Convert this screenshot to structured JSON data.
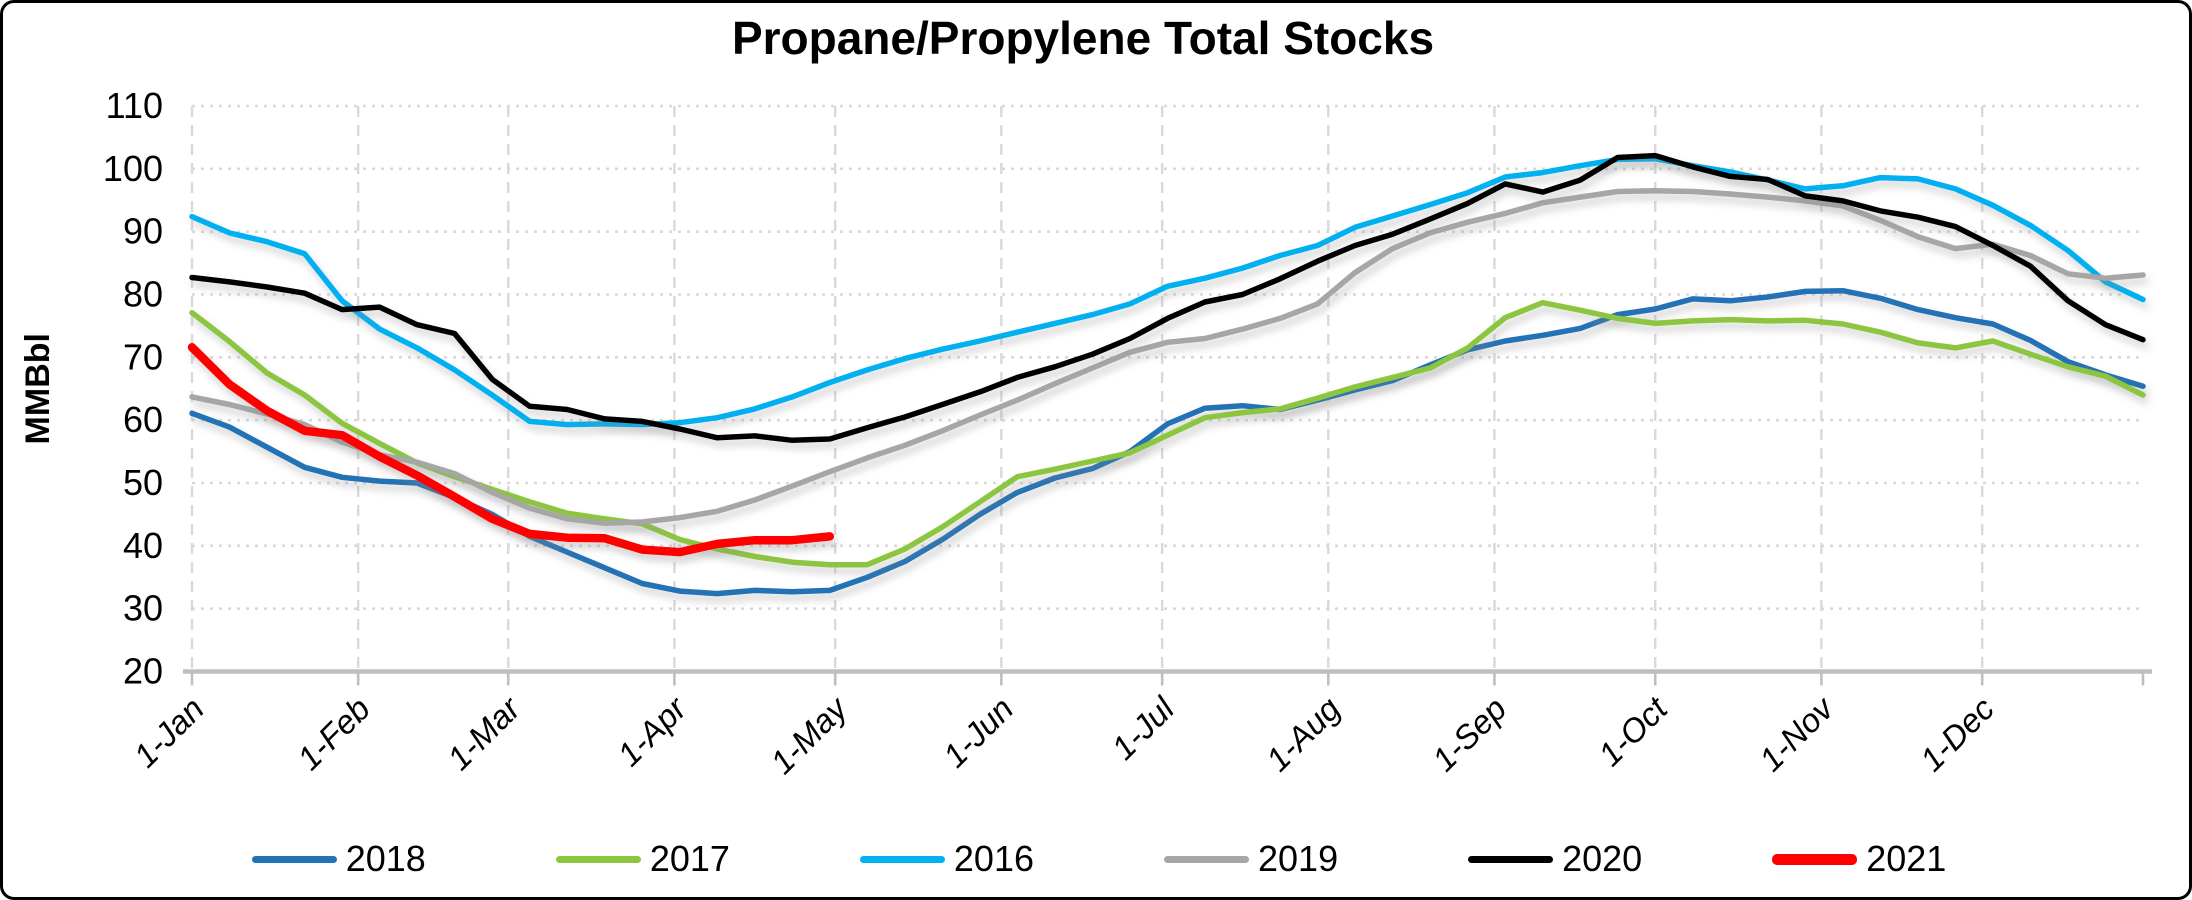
{
  "title": "Propane/Propylene Total Stocks",
  "y_axis": {
    "title": "MMBbl"
  },
  "chart_data": {
    "type": "line",
    "title": "Propane/Propylene Total Stocks",
    "xlabel": "",
    "ylabel": "MMBbl",
    "ylim": [
      20,
      110
    ],
    "y_ticks": [
      20,
      30,
      40,
      50,
      60,
      70,
      80,
      90,
      100,
      110
    ],
    "grid": "both",
    "legend_position": "bottom",
    "x_tick_labels": [
      "1-Jan",
      "1-Feb",
      "1-Mar",
      "1-Apr",
      "1-May",
      "1-Jun",
      "1-Jul",
      "1-Aug",
      "1-Sep",
      "1-Oct",
      "1-Nov",
      "1-Dec"
    ],
    "month_start_days": [
      1,
      32,
      60,
      91,
      121,
      152,
      182,
      213,
      244,
      274,
      305,
      335
    ],
    "x_axis_end_day": 365,
    "week_step_days": 7,
    "series": [
      {
        "name": "2018",
        "color": "#2272B5",
        "width": 5.5,
        "start_day": 1,
        "values": [
          61.1,
          58.9,
          55.7,
          52.5,
          50.9,
          50.3,
          50.0,
          47.7,
          45.0,
          41.5,
          39.0,
          36.5,
          34.0,
          32.8,
          32.4,
          32.9,
          32.7,
          32.9,
          35.0,
          37.5,
          41.0,
          45.0,
          48.5,
          50.8,
          52.3,
          55.0,
          59.4,
          61.9,
          62.3,
          61.7,
          63.2,
          64.8,
          66.3,
          68.8,
          71.2,
          72.6,
          73.5,
          74.6,
          76.8,
          77.7,
          79.3,
          79.0,
          79.6,
          80.5,
          80.6,
          79.4,
          77.6,
          76.3,
          75.3,
          72.7,
          69.3,
          67.2,
          65.4
        ]
      },
      {
        "name": "2017",
        "color": "#8CC63F",
        "width": 5.5,
        "start_day": 1,
        "values": [
          77.1,
          72.5,
          67.5,
          64.0,
          59.5,
          56.3,
          53.2,
          51.0,
          49.0,
          47.0,
          45.2,
          44.3,
          43.5,
          41.0,
          39.5,
          38.3,
          37.4,
          37.0,
          37.0,
          39.5,
          43.0,
          47.0,
          51.0,
          52.2,
          53.5,
          54.8,
          57.6,
          60.4,
          61.2,
          61.8,
          63.5,
          65.3,
          66.8,
          68.3,
          71.5,
          76.3,
          78.7,
          77.5,
          76.2,
          75.4,
          75.8,
          76.0,
          75.8,
          75.9,
          75.3,
          74.0,
          72.3,
          71.5,
          72.6,
          70.5,
          68.5,
          67.0,
          64.0
        ]
      },
      {
        "name": "2016",
        "color": "#00B0F0",
        "width": 5.5,
        "start_day": 1,
        "values": [
          92.4,
          89.8,
          88.4,
          86.5,
          79.0,
          74.5,
          71.5,
          68.0,
          64.0,
          59.8,
          59.3,
          59.4,
          59.3,
          59.6,
          60.4,
          61.8,
          63.7,
          66.0,
          68.0,
          69.8,
          71.3,
          72.6,
          74.0,
          75.4,
          76.8,
          78.5,
          81.3,
          82.6,
          84.2,
          86.2,
          87.8,
          90.7,
          92.5,
          94.3,
          96.2,
          98.7,
          99.4,
          100.5,
          101.5,
          101.6,
          100.5,
          99.5,
          98.2,
          96.8,
          97.3,
          98.6,
          98.4,
          96.8,
          94.2,
          91.0,
          87.0,
          82.0,
          79.2
        ]
      },
      {
        "name": "2019",
        "color": "#A6A6A6",
        "width": 5.5,
        "start_day": 1,
        "values": [
          63.7,
          62.5,
          61.0,
          59.3,
          56.5,
          54.5,
          53.3,
          51.5,
          48.5,
          46.0,
          44.3,
          43.6,
          43.8,
          44.5,
          45.5,
          47.3,
          49.5,
          51.8,
          54.0,
          56.0,
          58.3,
          60.8,
          63.2,
          65.8,
          68.3,
          70.8,
          72.4,
          73.0,
          74.5,
          76.2,
          78.5,
          83.5,
          87.3,
          89.8,
          91.5,
          92.9,
          94.6,
          95.5,
          96.4,
          96.5,
          96.4,
          96.0,
          95.5,
          94.9,
          94.1,
          91.8,
          89.2,
          87.3,
          88.0,
          86.2,
          83.3,
          82.6,
          83.1
        ]
      },
      {
        "name": "2020",
        "color": "#000000",
        "width": 5.5,
        "start_day": 1,
        "values": [
          82.7,
          82.0,
          81.2,
          80.2,
          77.6,
          78.0,
          75.2,
          73.8,
          66.5,
          62.2,
          61.7,
          60.2,
          59.8,
          58.6,
          57.2,
          57.5,
          56.8,
          57.0,
          58.8,
          60.5,
          62.5,
          64.5,
          66.8,
          68.5,
          70.5,
          73.0,
          76.2,
          78.8,
          80.0,
          82.5,
          85.3,
          87.8,
          89.6,
          92.0,
          94.5,
          97.6,
          96.3,
          98.2,
          101.8,
          102.1,
          100.3,
          98.8,
          98.3,
          95.7,
          94.9,
          93.3,
          92.3,
          90.8,
          87.8,
          84.5,
          79.0,
          75.2,
          72.8
        ]
      },
      {
        "name": "2021",
        "color": "#FF0000",
        "width": 8.5,
        "start_day": 1,
        "values": [
          71.6,
          65.7,
          61.5,
          58.3,
          57.6,
          54.2,
          51.2,
          47.8,
          44.3,
          41.9,
          41.3,
          41.2,
          39.4,
          39.0,
          40.3,
          40.9,
          40.9,
          41.5
        ]
      }
    ]
  },
  "colors": {
    "gridline": "#D9D9D9",
    "axis_line": "#BFBFBF",
    "text": "#000000"
  }
}
